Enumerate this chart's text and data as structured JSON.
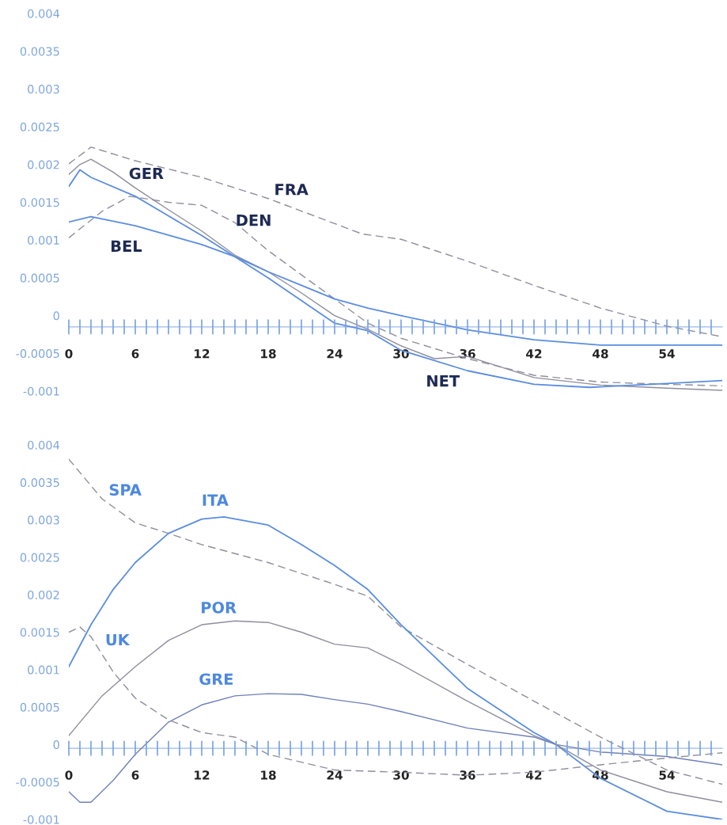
{
  "chart_data": [
    {
      "type": "line",
      "ylim": [
        -0.001,
        0.004
      ],
      "yticks": [
        -0.001,
        -0.0005,
        0,
        0.0005,
        0.001,
        0.0015,
        0.002,
        0.0025,
        0.003,
        0.0035,
        0.004
      ],
      "xlim": [
        0,
        59
      ],
      "xticks": [
        0,
        6,
        12,
        18,
        24,
        30,
        36,
        42,
        48,
        54
      ],
      "grid": false,
      "marker": "none",
      "series": [
        {
          "name": "FRA",
          "color": "#8e8e9c",
          "line_style": "dashed",
          "x": [
            0,
            2,
            6,
            12,
            18,
            26.5,
            30,
            36,
            42,
            48,
            54,
            59
          ],
          "values": [
            0.00201,
            0.00223,
            0.00205,
            0.00183,
            0.00155,
            0.00108,
            0.00101,
            0.00072,
            0.0004,
            0.0001,
            -0.00014,
            -0.00028
          ]
        },
        {
          "name": "GER",
          "color": "#8e8e9c",
          "line_style": "solid",
          "x": [
            0,
            1,
            2,
            4,
            6,
            9,
            12,
            15,
            18,
            21,
            24,
            27,
            30,
            33,
            36,
            42,
            48,
            54,
            59
          ],
          "values": [
            0.00187,
            0.002,
            0.00207,
            0.0019,
            0.00169,
            0.0014,
            0.00112,
            0.0008,
            0.00058,
            0.0003,
            0.0,
            -0.00018,
            -0.0004,
            -0.00057,
            -0.00054,
            -0.00082,
            -0.00092,
            -0.00096,
            -0.00099
          ]
        },
        {
          "name": "DEN",
          "color": "#8e8e9c",
          "line_style": "dashed",
          "x": [
            0,
            3,
            5.5,
            9,
            12,
            15,
            18,
            21,
            24,
            27,
            30,
            36,
            42,
            48,
            54,
            59
          ],
          "values": [
            0.00103,
            0.00138,
            0.00158,
            0.0015,
            0.00146,
            0.00123,
            0.00086,
            0.00054,
            0.00022,
            -0.0001,
            -0.0003,
            -0.00057,
            -0.00079,
            -0.00088,
            -0.00091,
            -0.00093
          ]
        },
        {
          "name": "NET",
          "color": "#5b8de0",
          "line_style": "solid",
          "x": [
            0,
            1,
            2,
            6,
            12,
            15,
            18,
            24,
            27,
            30,
            36,
            42,
            47,
            54,
            59
          ],
          "values": [
            0.00171,
            0.00193,
            0.00183,
            0.00158,
            0.00106,
            0.00078,
            0.0005,
            -0.0001,
            -0.0002,
            -0.00046,
            -0.00073,
            -0.00091,
            -0.00095,
            -0.0009,
            -0.00086
          ]
        },
        {
          "name": "BEL",
          "color": "#5b8de0",
          "line_style": "solid",
          "x": [
            0,
            2,
            6,
            12,
            15,
            18,
            21,
            24,
            27,
            30,
            36,
            42,
            48,
            54,
            59
          ],
          "values": [
            0.00124,
            0.00131,
            0.00119,
            0.00094,
            0.00078,
            0.00058,
            0.0004,
            0.00022,
            0.0001,
            0.0,
            -0.00019,
            -0.00032,
            -0.00039,
            -0.00039,
            -0.00039
          ]
        }
      ]
    },
    {
      "type": "line",
      "ylim": [
        -0.001,
        0.004
      ],
      "yticks": [
        -0.001,
        -0.0005,
        0,
        0.0005,
        0.001,
        0.0015,
        0.002,
        0.0025,
        0.003,
        0.0035,
        0.004
      ],
      "xlim": [
        0,
        59
      ],
      "xticks": [
        0,
        6,
        12,
        18,
        24,
        30,
        36,
        42,
        48,
        54
      ],
      "grid": false,
      "marker": "none",
      "series": [
        {
          "name": "SPA",
          "color": "#8e8e9c",
          "line_style": "dashed",
          "x": [
            0,
            3,
            6,
            9,
            12,
            18,
            24,
            27,
            30,
            36,
            42,
            48,
            54,
            59
          ],
          "values": [
            0.00381,
            0.00328,
            0.00296,
            0.00282,
            0.00267,
            0.00243,
            0.00214,
            0.00198,
            0.00157,
            0.00107,
            0.00058,
            0.0001,
            -0.00034,
            -0.00053
          ]
        },
        {
          "name": "ITA",
          "color": "#5b8de0",
          "line_style": "solid",
          "x": [
            0,
            2,
            4,
            6,
            9,
            12,
            14,
            18,
            21,
            24,
            27,
            30,
            36,
            42,
            44,
            48,
            54,
            59
          ],
          "values": [
            0.00104,
            0.0016,
            0.00207,
            0.00243,
            0.00282,
            0.00301,
            0.00304,
            0.00293,
            0.00267,
            0.00239,
            0.00207,
            0.0016,
            0.00075,
            0.00016,
            0.0,
            -0.00045,
            -0.00089,
            -0.001
          ]
        },
        {
          "name": "POR",
          "color": "#8e8e9c",
          "line_style": "solid",
          "x": [
            0,
            3,
            6,
            9,
            12,
            15,
            18,
            21,
            24,
            27,
            30,
            36,
            42,
            44,
            48,
            54,
            59
          ],
          "values": [
            0.00012,
            0.00065,
            0.00104,
            0.00139,
            0.0016,
            0.00165,
            0.00163,
            0.0015,
            0.00134,
            0.00129,
            0.00107,
            0.00058,
            0.00012,
            0.0,
            -0.00034,
            -0.00063,
            -0.00077
          ]
        },
        {
          "name": "GRE",
          "color": "#6f80b8",
          "line_style": "solid",
          "x": [
            0,
            1,
            2,
            4,
            6,
            9,
            12,
            15,
            18,
            21,
            24,
            27,
            30,
            36,
            42,
            44,
            48,
            54,
            59
          ],
          "values": [
            -0.00063,
            -0.00077,
            -0.00077,
            -0.00048,
            -0.00013,
            0.0003,
            0.00053,
            0.00065,
            0.00068,
            0.00067,
            0.0006,
            0.00054,
            0.00044,
            0.00022,
            0.0001,
            0.0,
            -0.0001,
            -0.00016,
            -0.00027
          ]
        },
        {
          "name": "UK",
          "color": "#8e8e9c",
          "line_style": "dashed",
          "x": [
            0,
            1,
            2,
            4,
            6,
            9,
            12,
            15,
            18,
            24,
            30,
            36,
            42,
            48,
            54,
            59
          ],
          "values": [
            0.0015,
            0.00157,
            0.00144,
            0.00097,
            0.00062,
            0.00033,
            0.00016,
            0.0001,
            -0.00013,
            -0.00034,
            -0.00037,
            -0.00041,
            -0.00037,
            -0.00027,
            -0.00018,
            -0.00011
          ]
        }
      ]
    }
  ]
}
